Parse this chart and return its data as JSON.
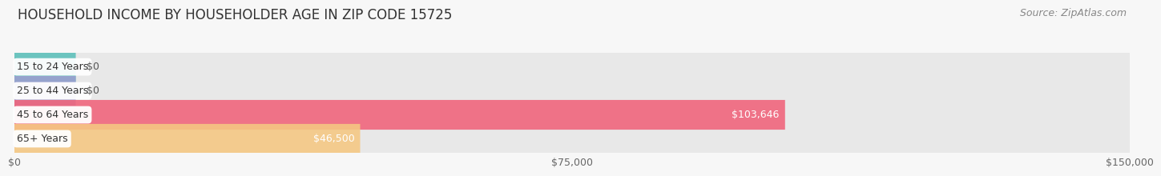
{
  "title": "HOUSEHOLD INCOME BY HOUSEHOLDER AGE IN ZIP CODE 15725",
  "source": "Source: ZipAtlas.com",
  "categories": [
    "15 to 24 Years",
    "25 to 44 Years",
    "45 to 64 Years",
    "65+ Years"
  ],
  "values": [
    0,
    0,
    103646,
    46500
  ],
  "bar_colors": [
    "#5BBFBA",
    "#9B9FD0",
    "#F0627A",
    "#F5C882"
  ],
  "value_labels": [
    "$0",
    "$0",
    "$103,646",
    "$46,500"
  ],
  "x_ticks": [
    0,
    75000,
    150000
  ],
  "x_tick_labels": [
    "$0",
    "$75,000",
    "$150,000"
  ],
  "xlim": [
    0,
    150000
  ],
  "bar_height": 0.62,
  "background_color": "#f7f7f7",
  "bar_bg_color": "#e8e8e8",
  "grid_color": "#d0d0d0",
  "title_fontsize": 12,
  "source_fontsize": 9,
  "tick_fontsize": 9,
  "label_fontsize": 9
}
